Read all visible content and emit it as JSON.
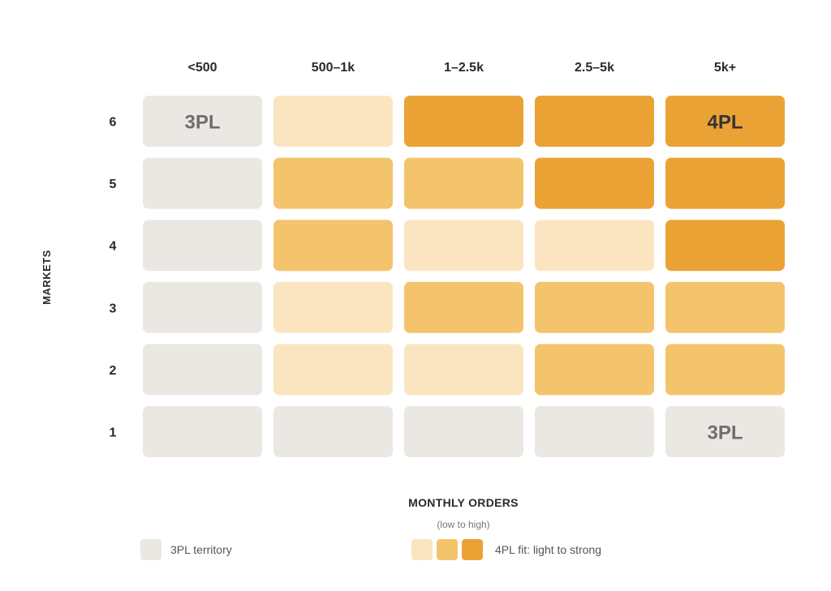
{
  "chart_data": {
    "type": "heatmap",
    "xlabel": "MONTHLY ORDERS",
    "xlabel_sub": "(low to high)",
    "ylabel": "MARKETS",
    "columns": [
      "<500",
      "500–1k",
      "1–2.5k",
      "2.5–5k",
      "5k+"
    ],
    "rows": [
      "6",
      "5",
      "4",
      "3",
      "2",
      "1"
    ],
    "values": [
      [
        0,
        1,
        3,
        3,
        3
      ],
      [
        0,
        2,
        2,
        3,
        3
      ],
      [
        0,
        2,
        1,
        1,
        3
      ],
      [
        0,
        1,
        2,
        2,
        2
      ],
      [
        0,
        1,
        1,
        2,
        2
      ],
      [
        0,
        0,
        0,
        0,
        0
      ]
    ],
    "levels": {
      "0": "3PL territory",
      "1": "4PL fit: light",
      "2": "4PL fit: medium",
      "3": "4PL fit: strong"
    },
    "colors": {
      "0": "#ebe8e3",
      "1": "#fbe5c1",
      "2": "#f3c46c",
      "3": "#eba235"
    },
    "annotations": [
      {
        "row": "6",
        "column": "<500",
        "text": "3PL"
      },
      {
        "row": "6",
        "column": "5k+",
        "text": "4PL"
      },
      {
        "row": "1",
        "column": "5k+",
        "text": "3PL"
      }
    ]
  },
  "legend": {
    "territory_label": "3PL territory",
    "fit_label": "4PL fit: light to strong"
  }
}
